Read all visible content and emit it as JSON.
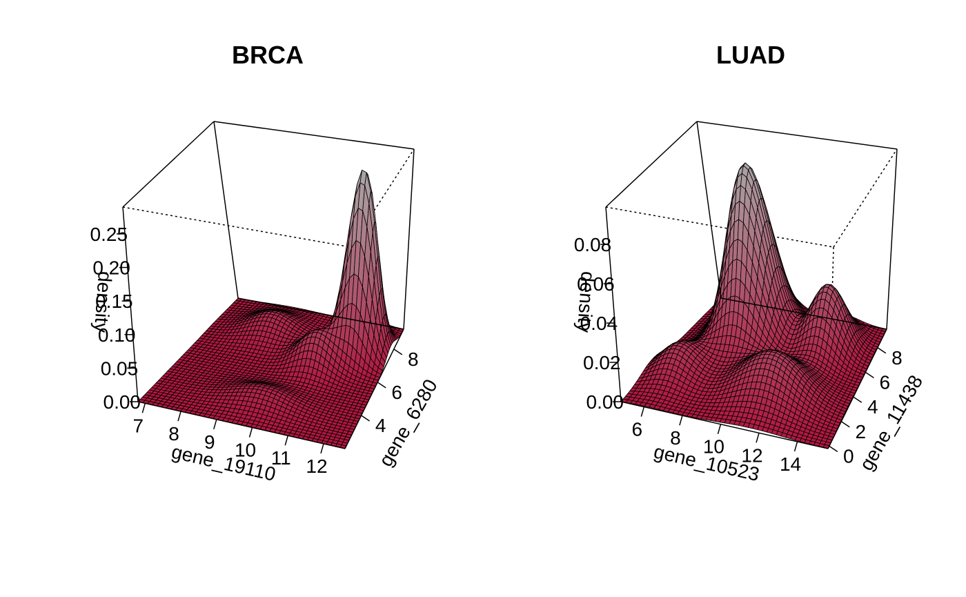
{
  "chart_data": [
    {
      "type": "surface",
      "title": "BRCA",
      "xlabel": "gene_19110",
      "ylabel": "gene_6280",
      "zlabel": "density",
      "xlim": [
        6.8,
        12.6
      ],
      "ylim": [
        2.0,
        9.2
      ],
      "zlim": [
        0,
        0.29
      ],
      "x_ticks": [
        "7",
        "8",
        "9",
        "10",
        "11",
        "12"
      ],
      "y_ticks": [
        "4",
        "6",
        "8"
      ],
      "z_ticks": [
        "0.00",
        "0.05",
        "0.10",
        "0.15",
        "0.20",
        "0.25"
      ],
      "peaks": [
        {
          "x": 11.6,
          "y": 7.6,
          "height": 0.285,
          "sx": 0.42,
          "sy": 0.55
        },
        {
          "x": 10.6,
          "y": 6.3,
          "height": 0.05,
          "sx": 0.55,
          "sy": 0.6
        },
        {
          "x": 8.7,
          "y": 7.6,
          "height": 0.03,
          "sx": 0.7,
          "sy": 0.7
        },
        {
          "x": 9.8,
          "y": 3.6,
          "height": 0.02,
          "sx": 0.8,
          "sy": 0.6
        }
      ],
      "colors": {
        "low": "#b0173f",
        "high": "#aaaaaa",
        "mesh": "#000000"
      }
    },
    {
      "type": "surface",
      "title": "LUAD",
      "xlabel": "gene_10523",
      "ylabel": "gene_11438",
      "zlabel": "density",
      "xlim": [
        4.8,
        15.6
      ],
      "ylim": [
        -0.2,
        9.5
      ],
      "zlim": [
        0,
        0.099
      ],
      "x_ticks": [
        "6",
        "8",
        "10",
        "12",
        "14"
      ],
      "y_ticks": [
        "0",
        "2",
        "4",
        "6",
        "8"
      ],
      "z_ticks": [
        "0.00",
        "0.02",
        "0.04",
        "0.06",
        "0.08"
      ],
      "peaks": [
        {
          "x": 8.5,
          "y": 7.0,
          "height": 0.094,
          "sx": 1.1,
          "sy": 1.3
        },
        {
          "x": 12.8,
          "y": 7.2,
          "height": 0.034,
          "sx": 1.0,
          "sy": 1.1
        },
        {
          "x": 11.5,
          "y": 2.8,
          "height": 0.022,
          "sx": 1.6,
          "sy": 1.3
        },
        {
          "x": 6.3,
          "y": 3.0,
          "height": 0.015,
          "sx": 1.0,
          "sy": 1.2
        }
      ],
      "colors": {
        "low": "#b0173f",
        "high": "#aaaaaa",
        "mesh": "#000000"
      }
    }
  ]
}
